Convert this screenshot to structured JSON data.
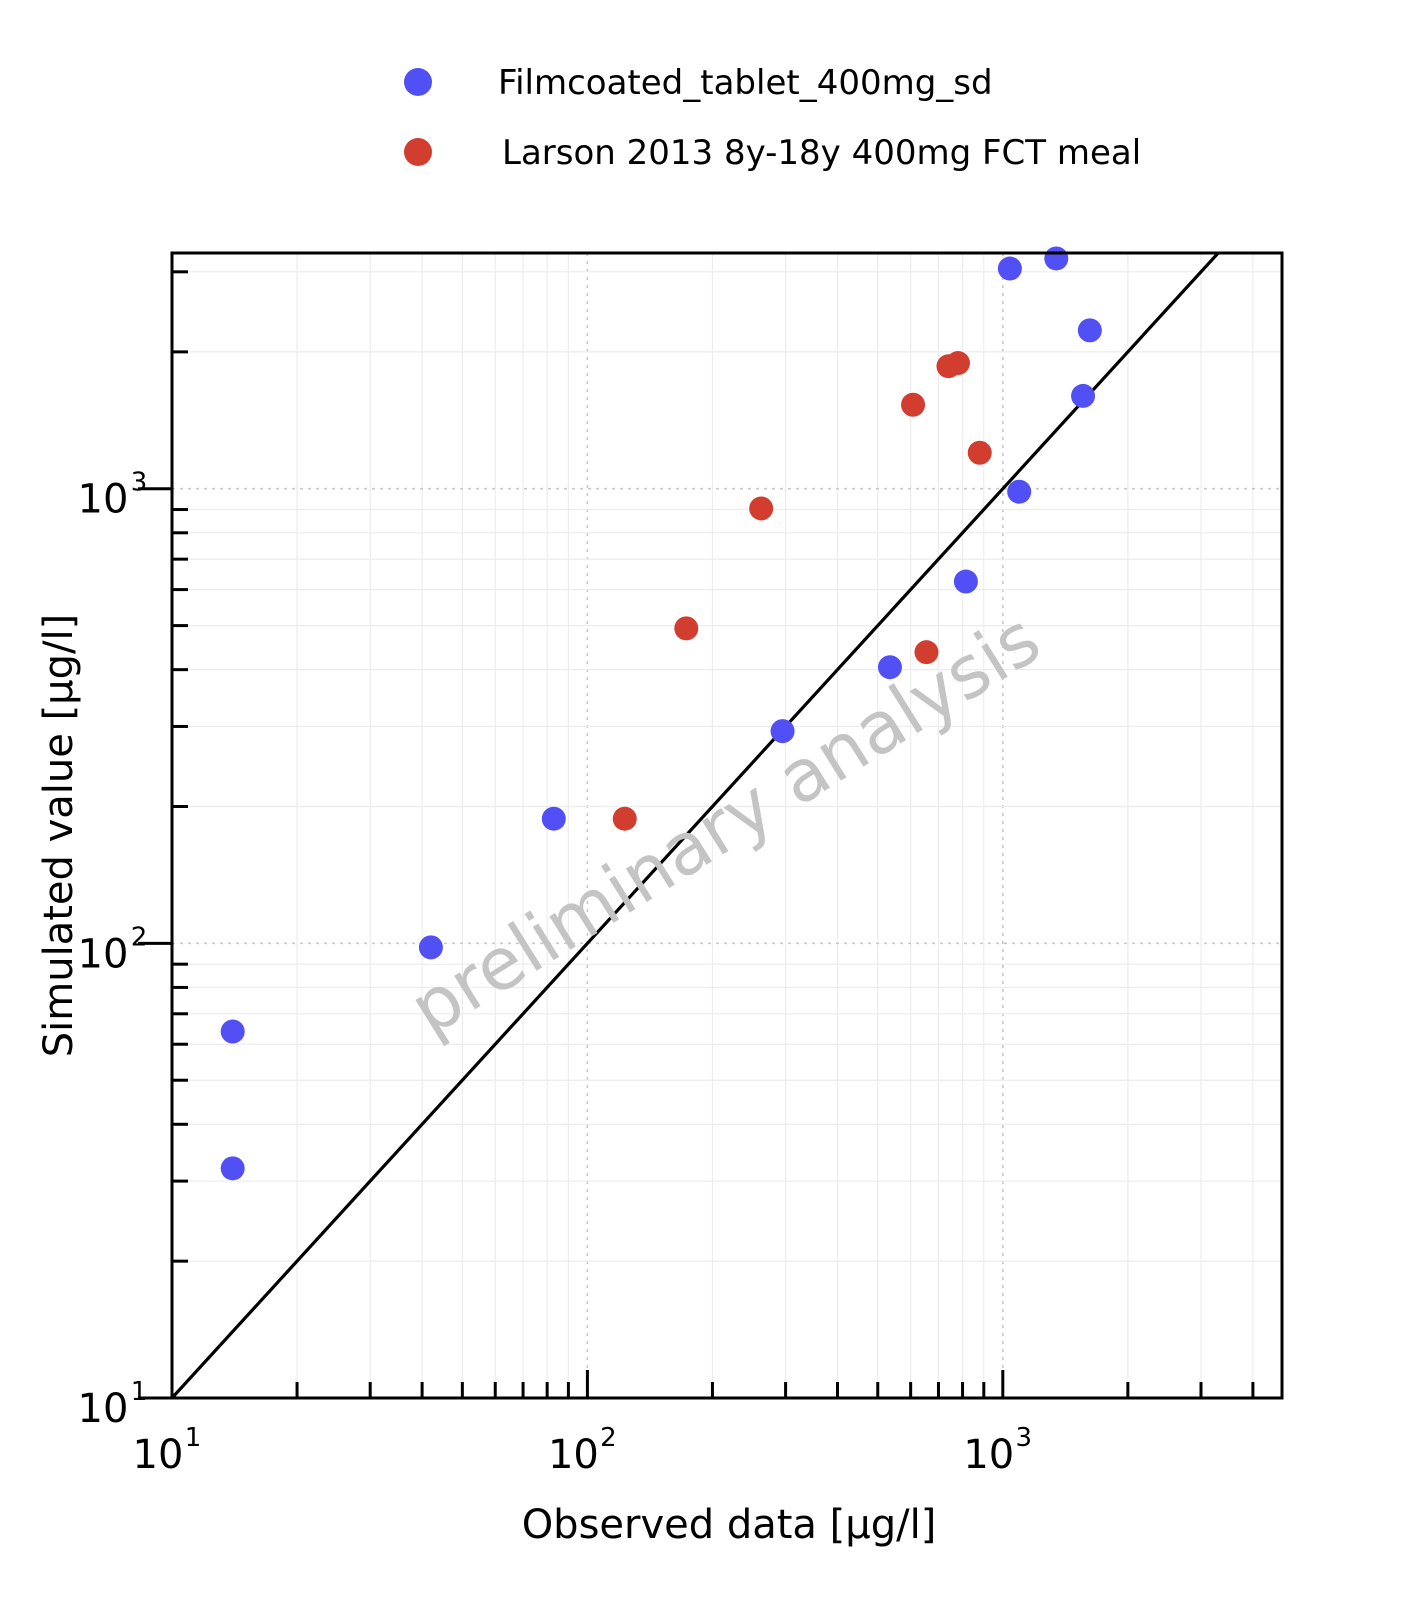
{
  "chart_data": {
    "type": "scatter",
    "title": "",
    "xlabel": "Observed data [µg/l]",
    "ylabel": "Simulated value [µg/l]",
    "xscale": "log",
    "yscale": "log",
    "xlim": [
      10,
      4700
    ],
    "ylim": [
      10,
      3300
    ],
    "grid": true,
    "legend_position": "top",
    "identity_line": true,
    "watermark": "preliminary analysis",
    "x_ticks": [
      {
        "base": "10",
        "exp": "1",
        "value": 10
      },
      {
        "base": "10",
        "exp": "2",
        "value": 100
      },
      {
        "base": "10",
        "exp": "3",
        "value": 1000
      }
    ],
    "y_ticks": [
      {
        "base": "10",
        "exp": "1",
        "value": 10
      },
      {
        "base": "10",
        "exp": "2",
        "value": 100
      },
      {
        "base": "10",
        "exp": "3",
        "value": 1000
      }
    ],
    "series": [
      {
        "name": "Filmcoated_tablet_400mg_sd",
        "color": "#5050f5",
        "points": [
          {
            "x": 14,
            "y": 64
          },
          {
            "x": 14,
            "y": 32
          },
          {
            "x": 42,
            "y": 98
          },
          {
            "x": 83,
            "y": 188
          },
          {
            "x": 295,
            "y": 293
          },
          {
            "x": 535,
            "y": 405
          },
          {
            "x": 815,
            "y": 625
          },
          {
            "x": 1095,
            "y": 985
          },
          {
            "x": 1040,
            "y": 3050
          },
          {
            "x": 1345,
            "y": 3210
          },
          {
            "x": 1620,
            "y": 2230
          },
          {
            "x": 1560,
            "y": 1600
          }
        ]
      },
      {
        "name": "Larson 2013 8y-18y 400mg FCT meal",
        "color": "#d13e30",
        "points": [
          {
            "x": 123,
            "y": 188
          },
          {
            "x": 173,
            "y": 493
          },
          {
            "x": 262,
            "y": 905
          },
          {
            "x": 655,
            "y": 437
          },
          {
            "x": 608,
            "y": 1530
          },
          {
            "x": 740,
            "y": 1860
          },
          {
            "x": 780,
            "y": 1890
          },
          {
            "x": 880,
            "y": 1200
          }
        ]
      }
    ]
  }
}
